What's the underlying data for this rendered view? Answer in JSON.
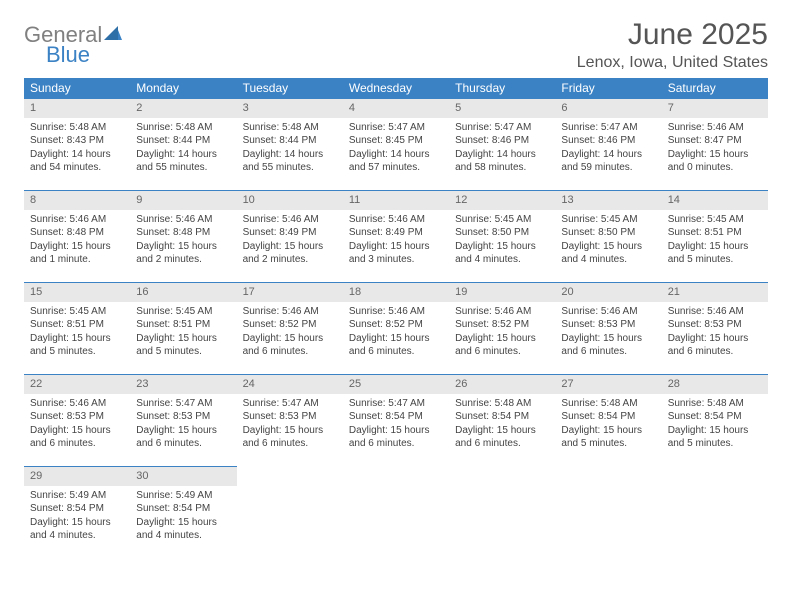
{
  "logo": {
    "general": "General",
    "blue": "Blue",
    "accent_color": "#3b82c4",
    "gray_color": "#808080"
  },
  "header": {
    "title": "June 2025",
    "location": "Lenox, Iowa, United States"
  },
  "colors": {
    "header_bg": "#3b82c4",
    "header_text": "#ffffff",
    "daynum_bg": "#e8e8e8",
    "border": "#3b82c4",
    "body_text": "#444444"
  },
  "day_labels": [
    "Sunday",
    "Monday",
    "Tuesday",
    "Wednesday",
    "Thursday",
    "Friday",
    "Saturday"
  ],
  "weeks": [
    [
      {
        "num": "1",
        "sunrise": "Sunrise: 5:48 AM",
        "sunset": "Sunset: 8:43 PM",
        "daylight": "Daylight: 14 hours and 54 minutes."
      },
      {
        "num": "2",
        "sunrise": "Sunrise: 5:48 AM",
        "sunset": "Sunset: 8:44 PM",
        "daylight": "Daylight: 14 hours and 55 minutes."
      },
      {
        "num": "3",
        "sunrise": "Sunrise: 5:48 AM",
        "sunset": "Sunset: 8:44 PM",
        "daylight": "Daylight: 14 hours and 55 minutes."
      },
      {
        "num": "4",
        "sunrise": "Sunrise: 5:47 AM",
        "sunset": "Sunset: 8:45 PM",
        "daylight": "Daylight: 14 hours and 57 minutes."
      },
      {
        "num": "5",
        "sunrise": "Sunrise: 5:47 AM",
        "sunset": "Sunset: 8:46 PM",
        "daylight": "Daylight: 14 hours and 58 minutes."
      },
      {
        "num": "6",
        "sunrise": "Sunrise: 5:47 AM",
        "sunset": "Sunset: 8:46 PM",
        "daylight": "Daylight: 14 hours and 59 minutes."
      },
      {
        "num": "7",
        "sunrise": "Sunrise: 5:46 AM",
        "sunset": "Sunset: 8:47 PM",
        "daylight": "Daylight: 15 hours and 0 minutes."
      }
    ],
    [
      {
        "num": "8",
        "sunrise": "Sunrise: 5:46 AM",
        "sunset": "Sunset: 8:48 PM",
        "daylight": "Daylight: 15 hours and 1 minute."
      },
      {
        "num": "9",
        "sunrise": "Sunrise: 5:46 AM",
        "sunset": "Sunset: 8:48 PM",
        "daylight": "Daylight: 15 hours and 2 minutes."
      },
      {
        "num": "10",
        "sunrise": "Sunrise: 5:46 AM",
        "sunset": "Sunset: 8:49 PM",
        "daylight": "Daylight: 15 hours and 2 minutes."
      },
      {
        "num": "11",
        "sunrise": "Sunrise: 5:46 AM",
        "sunset": "Sunset: 8:49 PM",
        "daylight": "Daylight: 15 hours and 3 minutes."
      },
      {
        "num": "12",
        "sunrise": "Sunrise: 5:45 AM",
        "sunset": "Sunset: 8:50 PM",
        "daylight": "Daylight: 15 hours and 4 minutes."
      },
      {
        "num": "13",
        "sunrise": "Sunrise: 5:45 AM",
        "sunset": "Sunset: 8:50 PM",
        "daylight": "Daylight: 15 hours and 4 minutes."
      },
      {
        "num": "14",
        "sunrise": "Sunrise: 5:45 AM",
        "sunset": "Sunset: 8:51 PM",
        "daylight": "Daylight: 15 hours and 5 minutes."
      }
    ],
    [
      {
        "num": "15",
        "sunrise": "Sunrise: 5:45 AM",
        "sunset": "Sunset: 8:51 PM",
        "daylight": "Daylight: 15 hours and 5 minutes."
      },
      {
        "num": "16",
        "sunrise": "Sunrise: 5:45 AM",
        "sunset": "Sunset: 8:51 PM",
        "daylight": "Daylight: 15 hours and 5 minutes."
      },
      {
        "num": "17",
        "sunrise": "Sunrise: 5:46 AM",
        "sunset": "Sunset: 8:52 PM",
        "daylight": "Daylight: 15 hours and 6 minutes."
      },
      {
        "num": "18",
        "sunrise": "Sunrise: 5:46 AM",
        "sunset": "Sunset: 8:52 PM",
        "daylight": "Daylight: 15 hours and 6 minutes."
      },
      {
        "num": "19",
        "sunrise": "Sunrise: 5:46 AM",
        "sunset": "Sunset: 8:52 PM",
        "daylight": "Daylight: 15 hours and 6 minutes."
      },
      {
        "num": "20",
        "sunrise": "Sunrise: 5:46 AM",
        "sunset": "Sunset: 8:53 PM",
        "daylight": "Daylight: 15 hours and 6 minutes."
      },
      {
        "num": "21",
        "sunrise": "Sunrise: 5:46 AM",
        "sunset": "Sunset: 8:53 PM",
        "daylight": "Daylight: 15 hours and 6 minutes."
      }
    ],
    [
      {
        "num": "22",
        "sunrise": "Sunrise: 5:46 AM",
        "sunset": "Sunset: 8:53 PM",
        "daylight": "Daylight: 15 hours and 6 minutes."
      },
      {
        "num": "23",
        "sunrise": "Sunrise: 5:47 AM",
        "sunset": "Sunset: 8:53 PM",
        "daylight": "Daylight: 15 hours and 6 minutes."
      },
      {
        "num": "24",
        "sunrise": "Sunrise: 5:47 AM",
        "sunset": "Sunset: 8:53 PM",
        "daylight": "Daylight: 15 hours and 6 minutes."
      },
      {
        "num": "25",
        "sunrise": "Sunrise: 5:47 AM",
        "sunset": "Sunset: 8:54 PM",
        "daylight": "Daylight: 15 hours and 6 minutes."
      },
      {
        "num": "26",
        "sunrise": "Sunrise: 5:48 AM",
        "sunset": "Sunset: 8:54 PM",
        "daylight": "Daylight: 15 hours and 6 minutes."
      },
      {
        "num": "27",
        "sunrise": "Sunrise: 5:48 AM",
        "sunset": "Sunset: 8:54 PM",
        "daylight": "Daylight: 15 hours and 5 minutes."
      },
      {
        "num": "28",
        "sunrise": "Sunrise: 5:48 AM",
        "sunset": "Sunset: 8:54 PM",
        "daylight": "Daylight: 15 hours and 5 minutes."
      }
    ],
    [
      {
        "num": "29",
        "sunrise": "Sunrise: 5:49 AM",
        "sunset": "Sunset: 8:54 PM",
        "daylight": "Daylight: 15 hours and 4 minutes."
      },
      {
        "num": "30",
        "sunrise": "Sunrise: 5:49 AM",
        "sunset": "Sunset: 8:54 PM",
        "daylight": "Daylight: 15 hours and 4 minutes."
      },
      {
        "empty": true
      },
      {
        "empty": true
      },
      {
        "empty": true
      },
      {
        "empty": true
      },
      {
        "empty": true
      }
    ]
  ]
}
